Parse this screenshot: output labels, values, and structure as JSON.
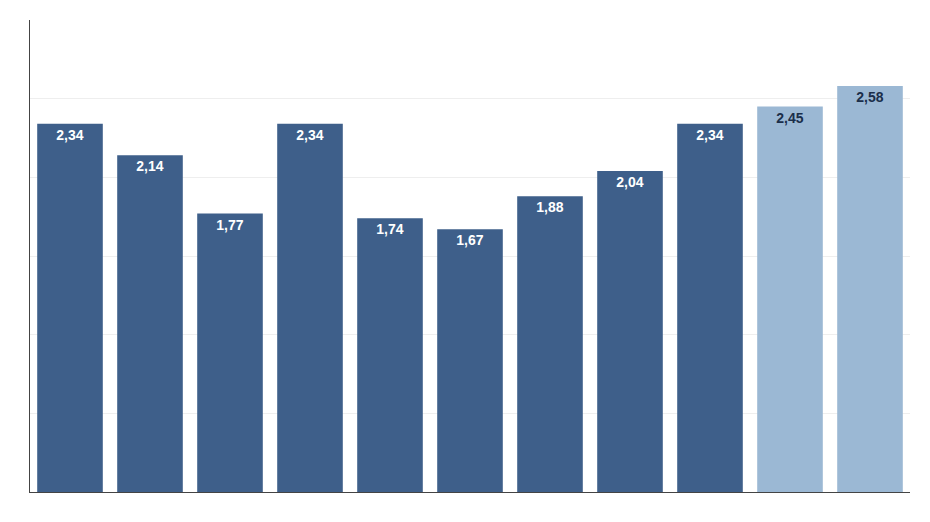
{
  "chart_data": {
    "type": "bar",
    "categories": [
      null,
      null,
      null,
      null,
      null,
      null,
      null,
      null,
      null,
      null,
      null
    ],
    "values": [
      2.34,
      2.14,
      1.77,
      2.34,
      1.74,
      1.67,
      1.88,
      2.04,
      2.34,
      2.45,
      2.58
    ],
    "value_labels": [
      "2,34",
      "2,14",
      "1,77",
      "2,34",
      "1,74",
      "1,67",
      "1,88",
      "2,04",
      "2,34",
      "2,45",
      "2,58"
    ],
    "colors": [
      "#3E5F8A",
      "#3E5F8A",
      "#3E5F8A",
      "#3E5F8A",
      "#3E5F8A",
      "#3E5F8A",
      "#3E5F8A",
      "#3E5F8A",
      "#3E5F8A",
      "#9BB8D4",
      "#9BB8D4"
    ],
    "ylim": [
      0,
      3.0
    ],
    "yticks": [
      0.0,
      0.5,
      1.0,
      1.5,
      2.0,
      2.5,
      3.0
    ],
    "grid": true,
    "data_labels": true,
    "tick_labels": false
  }
}
